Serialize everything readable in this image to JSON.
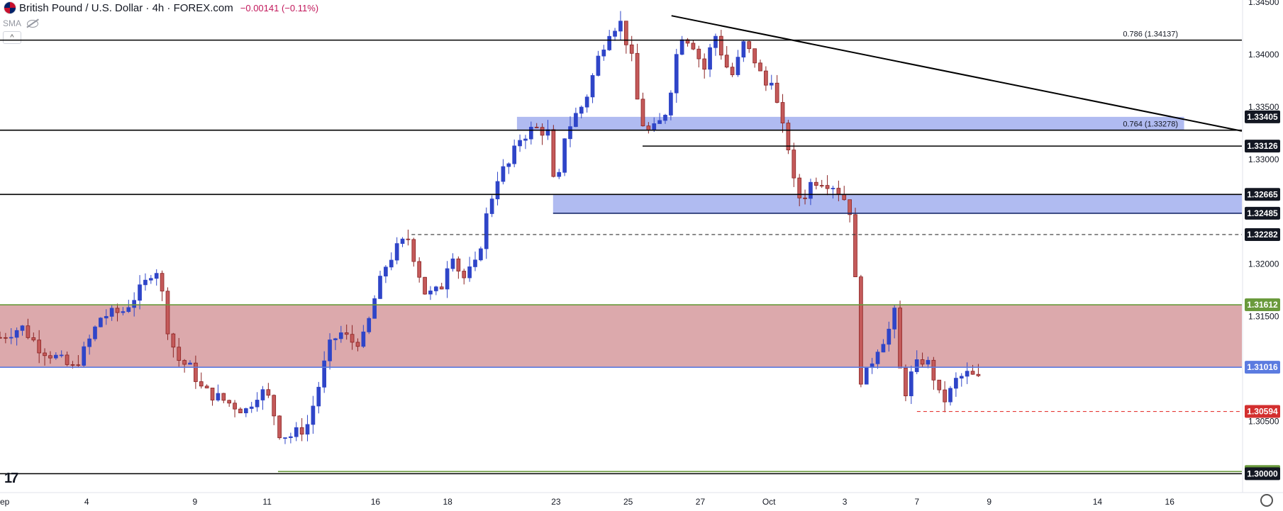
{
  "header": {
    "title": "British Pound / U.S. Dollar · 4h · FOREX.com",
    "change": "−0.00141 (−0.11%)",
    "indicator": "SMA"
  },
  "chart_data": {
    "type": "candlestick",
    "y_range": [
      1.2982,
      1.3452
    ],
    "price_ticks": [
      "1.34500",
      "1.34000",
      "1.33500",
      "1.33000",
      "1.32000",
      "1.31500",
      "1.30500",
      "1.30000"
    ],
    "date_ticks": [
      {
        "label": "ep",
        "t": 0.0
      },
      {
        "label": "4",
        "t": 0.12
      },
      {
        "label": "9",
        "t": 0.27
      },
      {
        "label": "11",
        "t": 0.37
      },
      {
        "label": "16",
        "t": 0.52
      },
      {
        "label": "18",
        "t": 0.62
      },
      {
        "label": "23",
        "t": 0.77
      },
      {
        "label": "25",
        "t": 0.87
      },
      {
        "label": "27",
        "t": 0.97
      },
      {
        "label": "Oct",
        "t": 1.065
      },
      {
        "label": "3",
        "t": 1.17
      },
      {
        "label": "7",
        "t": 1.27
      },
      {
        "label": "9",
        "t": 1.37
      },
      {
        "label": "14",
        "t": 1.52
      },
      {
        "label": "16",
        "t": 1.62
      }
    ],
    "x_span": [
      0,
      1.72
    ],
    "zones": [
      {
        "kind": "support-zone",
        "from": 1.31016,
        "to": 1.31612,
        "t0": 0.0,
        "t1": 1.72,
        "fill": "#d8a0a3"
      },
      {
        "kind": "resistance-zone",
        "from": 1.33278,
        "to": 1.33405,
        "t0": 0.716,
        "t1": 1.64,
        "fill": "#a7b4f0"
      },
      {
        "kind": "resistance-zone",
        "from": 1.32485,
        "to": 1.32665,
        "t0": 0.766,
        "t1": 1.72,
        "fill": "#a7b4f0"
      }
    ],
    "levels": [
      {
        "price": 1.34137,
        "t0": 0.0,
        "t1": 1.72,
        "style": "solid",
        "color": "#000000",
        "label": "0.786 (1.34137)"
      },
      {
        "price": 1.33278,
        "t0": 0.0,
        "t1": 1.72,
        "style": "solid",
        "color": "#000000",
        "label": "0.764 (1.33278)"
      },
      {
        "price": 1.33126,
        "t0": 0.89,
        "t1": 1.72,
        "style": "solid",
        "color": "#000000",
        "label": ""
      },
      {
        "price": 1.32665,
        "t0": 0.0,
        "t1": 1.72,
        "style": "solid",
        "color": "#000000",
        "label": ""
      },
      {
        "price": 1.32485,
        "t0": 0.766,
        "t1": 1.72,
        "style": "solid",
        "color": "#1a2b6b",
        "label": ""
      },
      {
        "price": 1.32282,
        "t0": 0.57,
        "t1": 1.72,
        "style": "dashed",
        "color": "#333333",
        "label": ""
      },
      {
        "price": 1.31612,
        "t0": 0.0,
        "t1": 1.72,
        "style": "solid",
        "color": "#6a9a3c",
        "label": ""
      },
      {
        "price": 1.31016,
        "t0": 0.0,
        "t1": 1.72,
        "style": "solid",
        "color": "#5b7be0",
        "label": ""
      },
      {
        "price": 1.30594,
        "t0": 1.27,
        "t1": 1.72,
        "style": "dashed",
        "color": "#e53935",
        "label": ""
      },
      {
        "price": 1.30021,
        "t0": 0.385,
        "t1": 1.72,
        "style": "solid",
        "color": "#6a9a3c",
        "label": ""
      },
      {
        "price": 1.3,
        "t0": 0.0,
        "t1": 1.72,
        "style": "solid",
        "color": "#000000",
        "label": ""
      }
    ],
    "trendline": {
      "t0": 0.93,
      "p0": 1.3437,
      "t1": 1.72,
      "p1": 1.3327
    },
    "price_tags": [
      {
        "price": 1.33405,
        "text": "1.33405",
        "bg": "#131722",
        "fg": "#ffffff"
      },
      {
        "price": 1.33126,
        "text": "1.33126",
        "bg": "#131722",
        "fg": "#ffffff"
      },
      {
        "price": 1.32665,
        "text": "1.32665",
        "bg": "#131722",
        "fg": "#ffffff"
      },
      {
        "price": 1.32485,
        "text": "1.32485",
        "bg": "#131722",
        "fg": "#ffffff"
      },
      {
        "price": 1.32282,
        "text": "1.32282",
        "bg": "#131722",
        "fg": "#ffffff"
      },
      {
        "price": 1.31612,
        "text": "1.31612",
        "bg": "#6a9a3c",
        "fg": "#ffffff"
      },
      {
        "price": 1.31016,
        "text": "1.31016",
        "bg": "#5b7be0",
        "fg": "#ffffff"
      },
      {
        "price": 1.30594,
        "text": "1.30594",
        "bg": "#d32f2f",
        "fg": "#ffffff"
      },
      {
        "price": 1.30021,
        "text": "1.30021",
        "bg": "#6a9a3c",
        "fg": "#ffffff"
      },
      {
        "price": 1.3,
        "text": "1.30000",
        "bg": "#131722",
        "fg": "#ffffff"
      }
    ],
    "colors": {
      "up": "#2f45c8",
      "down": "#c45a5a",
      "down_outline": "#8b2323",
      "axis_text": "#131722"
    },
    "path": [
      [
        0.0,
        1.313
      ],
      [
        0.03,
        1.314
      ],
      [
        0.055,
        1.312
      ],
      [
        0.08,
        1.311
      ],
      [
        0.1,
        1.31
      ],
      [
        0.115,
        1.3115
      ],
      [
        0.14,
        1.315
      ],
      [
        0.17,
        1.3155
      ],
      [
        0.2,
        1.318
      ],
      [
        0.215,
        1.32
      ],
      [
        0.225,
        1.317
      ],
      [
        0.232,
        1.314
      ],
      [
        0.245,
        1.311
      ],
      [
        0.265,
        1.31
      ],
      [
        0.28,
        1.308
      ],
      [
        0.31,
        1.307
      ],
      [
        0.34,
        1.306
      ],
      [
        0.36,
        1.308
      ],
      [
        0.375,
        1.307
      ],
      [
        0.385,
        1.304
      ],
      [
        0.4,
        1.3035
      ],
      [
        0.425,
        1.3045
      ],
      [
        0.44,
        1.308
      ],
      [
        0.455,
        1.312
      ],
      [
        0.47,
        1.3135
      ],
      [
        0.49,
        1.3125
      ],
      [
        0.505,
        1.313
      ],
      [
        0.52,
        1.317
      ],
      [
        0.535,
        1.32
      ],
      [
        0.55,
        1.3215
      ],
      [
        0.565,
        1.3225
      ],
      [
        0.59,
        1.317
      ],
      [
        0.61,
        1.3175
      ],
      [
        0.625,
        1.3215
      ],
      [
        0.64,
        1.3185
      ],
      [
        0.66,
        1.32
      ],
      [
        0.675,
        1.325
      ],
      [
        0.69,
        1.3285
      ],
      [
        0.705,
        1.3295
      ],
      [
        0.72,
        1.332
      ],
      [
        0.74,
        1.333
      ],
      [
        0.76,
        1.3325
      ],
      [
        0.77,
        1.3255
      ],
      [
        0.78,
        1.332
      ],
      [
        0.795,
        1.334
      ],
      [
        0.81,
        1.3355
      ],
      [
        0.83,
        1.34
      ],
      [
        0.845,
        1.3425
      ],
      [
        0.86,
        1.343
      ],
      [
        0.875,
        1.3395
      ],
      [
        0.885,
        1.3345
      ],
      [
        0.895,
        1.3325
      ],
      [
        0.91,
        1.333
      ],
      [
        0.925,
        1.335
      ],
      [
        0.935,
        1.3395
      ],
      [
        0.945,
        1.342
      ],
      [
        0.96,
        1.341
      ],
      [
        0.975,
        1.3385
      ],
      [
        0.99,
        1.342
      ],
      [
        1.005,
        1.339
      ],
      [
        1.015,
        1.338
      ],
      [
        1.03,
        1.341
      ],
      [
        1.045,
        1.3395
      ],
      [
        1.06,
        1.337
      ],
      [
        1.07,
        1.338
      ],
      [
        1.08,
        1.3335
      ],
      [
        1.09,
        1.332
      ],
      [
        1.1,
        1.3275
      ],
      [
        1.11,
        1.326
      ],
      [
        1.125,
        1.328
      ],
      [
        1.14,
        1.328
      ],
      [
        1.155,
        1.3275
      ],
      [
        1.17,
        1.3262
      ],
      [
        1.178,
        1.325
      ],
      [
        1.185,
        1.318
      ],
      [
        1.19,
        1.309
      ],
      [
        1.2,
        1.3095
      ],
      [
        1.215,
        1.312
      ],
      [
        1.23,
        1.3135
      ],
      [
        1.24,
        1.3155
      ],
      [
        1.25,
        1.307
      ],
      [
        1.265,
        1.31
      ],
      [
        1.28,
        1.311
      ],
      [
        1.29,
        1.31
      ],
      [
        1.3,
        1.3075
      ],
      [
        1.31,
        1.307
      ],
      [
        1.325,
        1.309
      ],
      [
        1.34,
        1.3095
      ],
      [
        1.355,
        1.309
      ]
    ]
  }
}
